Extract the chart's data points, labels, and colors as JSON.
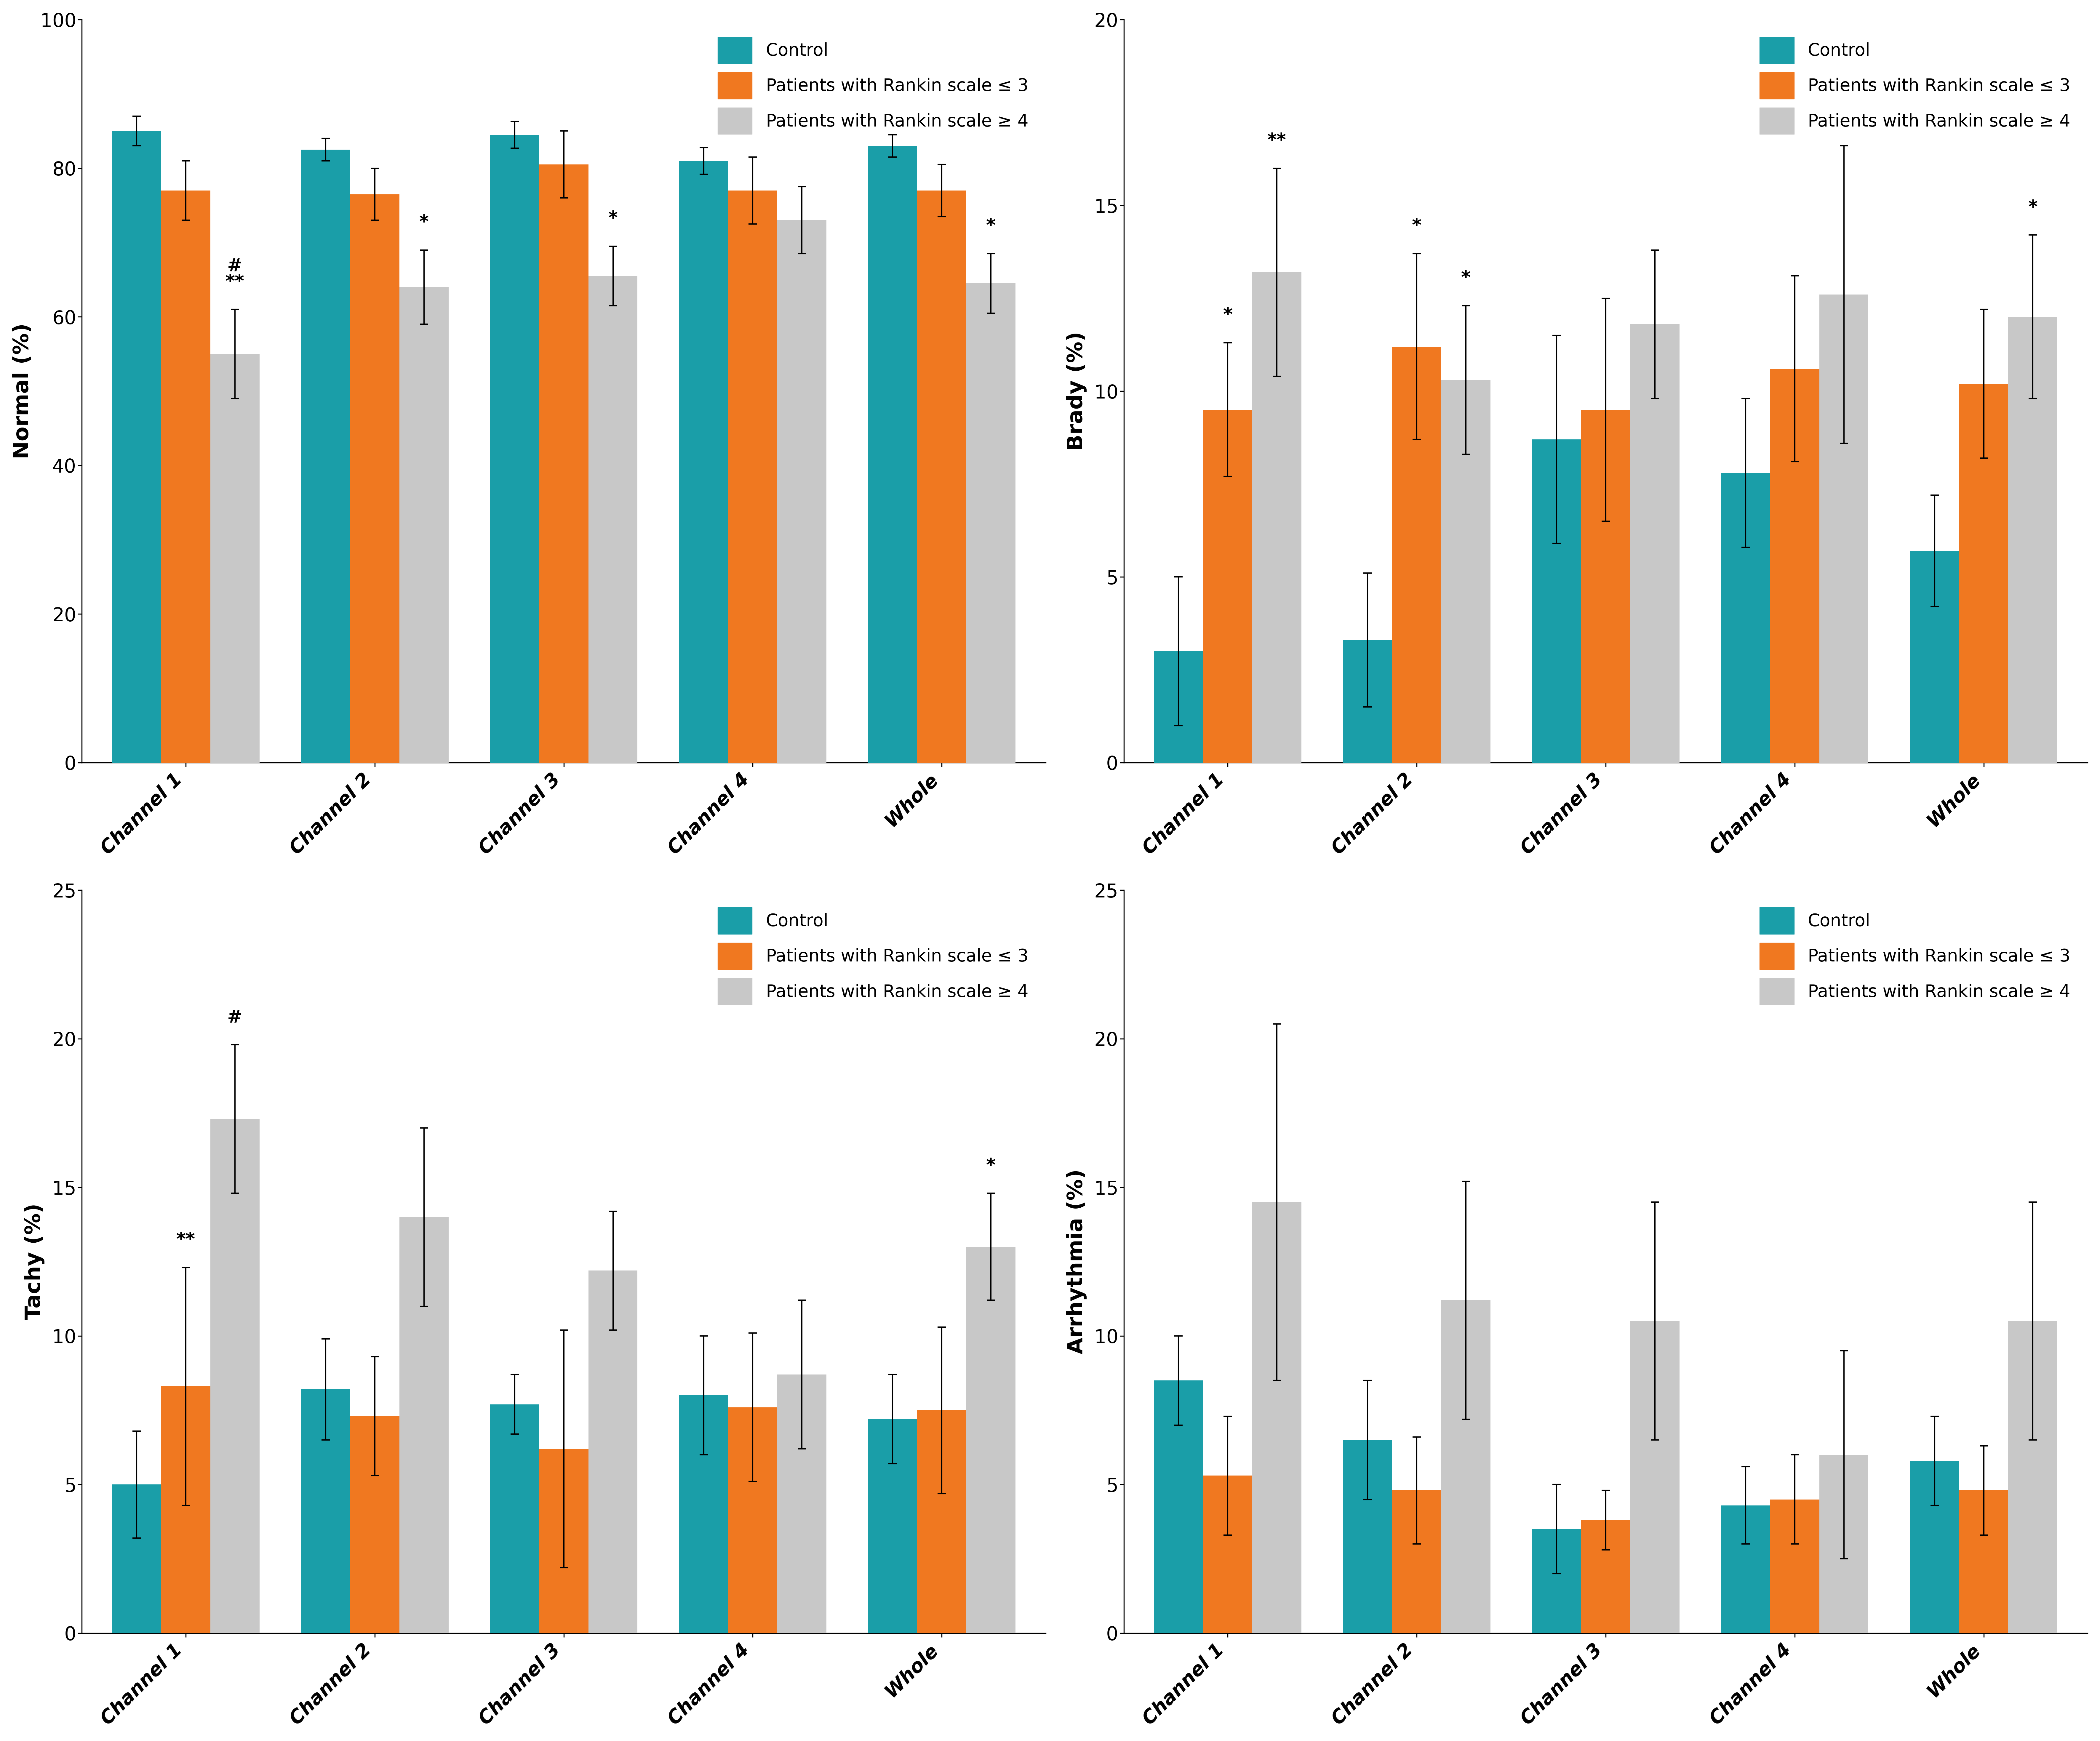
{
  "colors": {
    "control": "#1A9EA8",
    "rankin_le3": "#F07820",
    "rankin_ge4": "#C8C8C8"
  },
  "categories": [
    "Channel 1",
    "Channel 2",
    "Channel 3",
    "Channel 4",
    "Whole"
  ],
  "legend_labels": [
    "Control",
    "Patients with Rankin scale ≤ 3",
    "Patients with Rankin scale ≥ 4"
  ],
  "normal": {
    "ylabel": "Normal (%)",
    "ylim": [
      0,
      100
    ],
    "yticks": [
      0,
      20,
      40,
      60,
      80,
      100
    ],
    "values": {
      "control": [
        85.0,
        82.5,
        84.5,
        81.0,
        83.0
      ],
      "rankin_le3": [
        77.0,
        76.5,
        80.5,
        77.0,
        77.0
      ],
      "rankin_ge4": [
        55.0,
        64.0,
        65.5,
        73.0,
        64.5
      ]
    },
    "errors": {
      "control": [
        2.0,
        1.5,
        1.8,
        1.8,
        1.5
      ],
      "rankin_le3": [
        4.0,
        3.5,
        4.5,
        4.5,
        3.5
      ],
      "rankin_ge4": [
        6.0,
        5.0,
        4.0,
        4.5,
        4.0
      ]
    },
    "significance": {
      "0": {
        "col": 2,
        "text": "#\n**"
      },
      "1": {
        "col": 2,
        "text": "*"
      },
      "2": {
        "col": 2,
        "text": "*"
      },
      "4": {
        "col": 2,
        "text": "*"
      }
    }
  },
  "brady": {
    "ylabel": "Brady (%)",
    "ylim": [
      0,
      20
    ],
    "yticks": [
      0,
      5,
      10,
      15,
      20
    ],
    "values": {
      "control": [
        3.0,
        3.3,
        8.7,
        7.8,
        5.7
      ],
      "rankin_le3": [
        9.5,
        11.2,
        9.5,
        10.6,
        10.2
      ],
      "rankin_ge4": [
        13.2,
        10.3,
        11.8,
        12.6,
        12.0
      ]
    },
    "errors": {
      "control": [
        2.0,
        1.8,
        2.8,
        2.0,
        1.5
      ],
      "rankin_le3": [
        1.8,
        2.5,
        3.0,
        2.5,
        2.0
      ],
      "rankin_ge4": [
        2.8,
        2.0,
        2.0,
        4.0,
        2.2
      ]
    },
    "significance": {
      "0": {
        "col": 1,
        "text": "*"
      },
      "0b": {
        "col": 2,
        "text": "**"
      },
      "1": {
        "col": 1,
        "text": "*"
      },
      "1b": {
        "col": 2,
        "text": "*"
      },
      "4": {
        "col": 2,
        "text": "*"
      }
    }
  },
  "tachy": {
    "ylabel": "Tachy (%)",
    "ylim": [
      0,
      25
    ],
    "yticks": [
      0,
      5,
      10,
      15,
      20,
      25
    ],
    "values": {
      "control": [
        5.0,
        8.2,
        7.7,
        8.0,
        7.2
      ],
      "rankin_le3": [
        8.3,
        7.3,
        6.2,
        7.6,
        7.5
      ],
      "rankin_ge4": [
        17.3,
        14.0,
        12.2,
        8.7,
        13.0
      ]
    },
    "errors": {
      "control": [
        1.8,
        1.7,
        1.0,
        2.0,
        1.5
      ],
      "rankin_le3": [
        4.0,
        2.0,
        4.0,
        2.5,
        2.8
      ],
      "rankin_ge4": [
        2.5,
        3.0,
        2.0,
        2.5,
        1.8
      ]
    },
    "significance": {
      "0": {
        "col": 1,
        "text": "**"
      },
      "0b": {
        "col": 2,
        "text": "#"
      },
      "4": {
        "col": 2,
        "text": "*"
      }
    }
  },
  "arrhythmia": {
    "ylabel": "Arrhythmia (%)",
    "ylim": [
      0,
      25
    ],
    "yticks": [
      0,
      5,
      10,
      15,
      20,
      25
    ],
    "values": {
      "control": [
        8.5,
        6.5,
        3.5,
        4.3,
        5.8
      ],
      "rankin_le3": [
        5.3,
        4.8,
        3.8,
        4.5,
        4.8
      ],
      "rankin_ge4": [
        14.5,
        11.2,
        10.5,
        6.0,
        10.5
      ]
    },
    "errors": {
      "control": [
        1.5,
        2.0,
        1.5,
        1.3,
        1.5
      ],
      "rankin_le3": [
        2.0,
        1.8,
        1.0,
        1.5,
        1.5
      ],
      "rankin_ge4": [
        6.0,
        4.0,
        4.0,
        3.5,
        4.0
      ]
    },
    "significance": {}
  }
}
